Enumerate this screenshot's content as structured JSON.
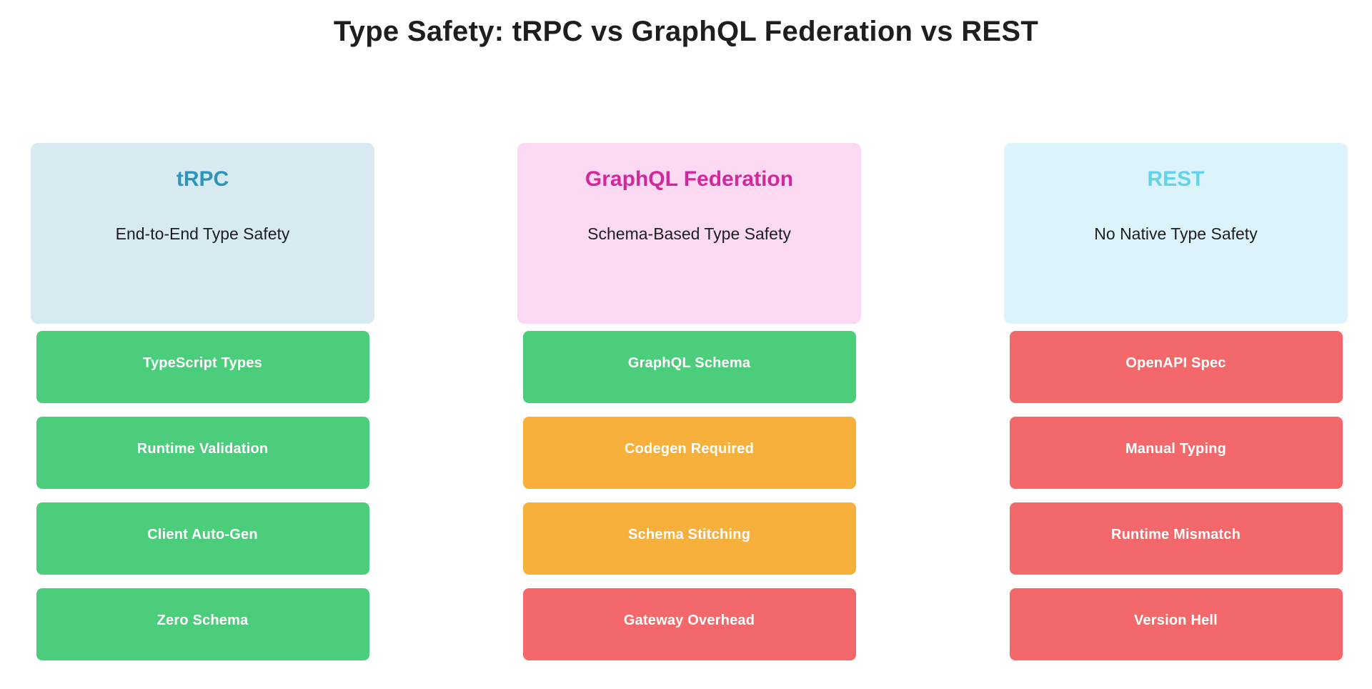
{
  "title": "Type Safety: tRPC vs GraphQL Federation vs REST",
  "colors": {
    "page_bg": "#ffffff",
    "text_dark": "#1c1f22",
    "card_text": "#ffffff",
    "status_good": "#4bcd7c",
    "status_warn": "#f8b03d",
    "status_bad": "#f3696b",
    "trpc_header_bg": "#d7e9f1",
    "trpc_title_color": "#2e95b9",
    "graphql_header_bg": "#fbd9f2",
    "graphql_title_color": "#d3289b",
    "rest_header_bg": "#ddf3fb",
    "rest_title_color": "#62d3eb"
  },
  "columns": [
    {
      "id": "trpc",
      "title": "tRPC",
      "subtitle": "End-to-End Type Safety",
      "items": [
        {
          "label": "TypeScript Types",
          "status": "good"
        },
        {
          "label": "Runtime Validation",
          "status": "good"
        },
        {
          "label": "Client Auto-Gen",
          "status": "good"
        },
        {
          "label": "Zero Schema",
          "status": "good"
        }
      ]
    },
    {
      "id": "graphql-federation",
      "title": "GraphQL Federation",
      "subtitle": "Schema-Based Type Safety",
      "items": [
        {
          "label": "GraphQL Schema",
          "status": "good"
        },
        {
          "label": "Codegen Required",
          "status": "warn"
        },
        {
          "label": "Schema Stitching",
          "status": "warn"
        },
        {
          "label": "Gateway Overhead",
          "status": "bad"
        }
      ]
    },
    {
      "id": "rest",
      "title": "REST",
      "subtitle": "No Native Type Safety",
      "items": [
        {
          "label": "OpenAPI Spec",
          "status": "bad"
        },
        {
          "label": "Manual Typing",
          "status": "bad"
        },
        {
          "label": "Runtime Mismatch",
          "status": "bad"
        },
        {
          "label": "Version Hell",
          "status": "bad"
        }
      ]
    }
  ]
}
